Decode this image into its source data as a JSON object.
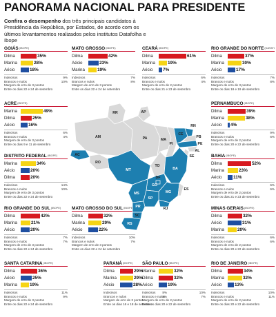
{
  "title": "PANORAMA NACIONAL PARA PRESIDENTE",
  "intro": {
    "bold": "Confira o desempenho",
    "text": " dos três principais candidatos à Presidência da República,  por Estados, de acordo com os últimos levantamentos realizados pelos institutos Datafolha e Ibope"
  },
  "colors": {
    "dilma": "#d7191f",
    "marina": "#f6d415",
    "aecio": "#1f4fa1",
    "map_highlight": "#1d7fb0",
    "map_base": "#d9d9d9"
  },
  "panels": [
    {
      "state": "GOIÁS",
      "institute": "(IBOPE)",
      "rows": [
        {
          "name": "Dilma",
          "value": 35
        },
        {
          "name": "Marina",
          "value": 28
        },
        {
          "name": "Aécio",
          "value": 18
        }
      ],
      "indecisos": "9%",
      "brancos": "10%",
      "margem": "Margem de erro de 3 pontos",
      "entre": "Entre os dias 22 e 24 de setembro"
    },
    {
      "state": "MATO GROSSO",
      "institute": "(IBOPE)",
      "rows": [
        {
          "name": "Dilma",
          "value": 42
        },
        {
          "name": "Aécio",
          "value": 23
        },
        {
          "name": "Marina",
          "value": 19
        }
      ],
      "indecisos": "7%",
      "brancos": "8%",
      "margem": "Margem de erro de 3 pontos",
      "entre": "Entre os dias 22 e 24 de setembro"
    },
    {
      "state": "CEARÁ",
      "institute": "(IBOPE)",
      "rows": [
        {
          "name": "Dilma",
          "value": 61
        },
        {
          "name": "Marina",
          "value": 19
        },
        {
          "name": "Aécio",
          "value": 7
        }
      ],
      "indecisos": "6%",
      "brancos": "4%",
      "margem": "Margem de erro de 2 pontos",
      "entre": "Entre os dias 21 e 23 de setembro"
    },
    {
      "state": "RIO GRANDE DO NORTE",
      "institute": "(DATAFOLHA)",
      "rows": [
        {
          "name": "Dilma",
          "value": 37
        },
        {
          "name": "Marina",
          "value": 30
        },
        {
          "name": "Aécio",
          "value": 17
        }
      ],
      "indecisos": "7%",
      "brancos": "8%",
      "margem": "Margem de erro de 3 pontos",
      "entre": "Entre os dias 18 e 19 de setembro"
    },
    {
      "state": "ACRE",
      "institute": "(IBOPE)",
      "rows": [
        {
          "name": "Marina",
          "value": 49
        },
        {
          "name": "Dilma",
          "value": 25
        },
        {
          "name": "Aécio",
          "value": 16
        }
      ],
      "indecisos": "6%",
      "brancos": "4%",
      "margem": "Margem de erro de 3 pontos",
      "entre": "Entre os dias 9 e 11 de setembro"
    },
    {
      "state": "PERNAMBUCO",
      "institute": "(IBOPE)",
      "rows": [
        {
          "name": "Dilma",
          "value": 39
        },
        {
          "name": "Marina",
          "value": 38
        },
        {
          "name": "Aécio",
          "value": 4
        }
      ],
      "indecisos": "9%",
      "brancos": "6%",
      "margem": "Margem de erro de 2 pontos",
      "entre": "Entre os dias 20 e 22 de setembro"
    },
    {
      "state": "DISTRITO FEDERAL",
      "institute": "(IBOPE)",
      "rows": [
        {
          "name": "Marina",
          "value": 34
        },
        {
          "name": "Aécio",
          "value": 20
        },
        {
          "name": "Dilma",
          "value": 20
        }
      ],
      "indecisos": "14%",
      "brancos": "10%",
      "margem": "Margem de erro de 3 pontos",
      "entre": "Entre os dias 22 e 24 de setembro"
    },
    {
      "state": "BAHIA",
      "institute": "(IBOPE)",
      "rows": [
        {
          "name": "Dilma",
          "value": 52
        },
        {
          "name": "Marina",
          "value": 23
        },
        {
          "name": "Aécio",
          "value": 11
        }
      ],
      "indecisos": "6%",
      "brancos": "6%",
      "margem": "Margem de erro de 2 pontos",
      "entre": "Entre os dias 21 e 23 de setembro"
    },
    {
      "state": "RIO GRANDE DO SUL",
      "institute": "(IBOPE)",
      "rows": [
        {
          "name": "Dilma",
          "value": 42
        },
        {
          "name": "Marina",
          "value": 21
        },
        {
          "name": "Aécio",
          "value": 20
        }
      ],
      "indecisos": "7%",
      "brancos": "7%",
      "margem": "Margem de erro de 3 pontos",
      "entre": "Entre os dias 22 e 24 de setembro"
    },
    {
      "state": "MATO GROSSO DO SUL",
      "institute": "(IBOPE)",
      "rows": [
        {
          "name": "Dilma",
          "value": 32
        },
        {
          "name": "Marina",
          "value": 29
        },
        {
          "name": "Aécio",
          "value": 22
        }
      ],
      "indecisos": "10%",
      "brancos": "7%",
      "margem": "Margem de erro de 3 pontos",
      "entre": "Entre os dias 22 e 24 de setembro"
    },
    {
      "state": "MINAS GERAIS",
      "institute": "(IBOPE)",
      "rows": [
        {
          "name": "Dilma",
          "value": 32
        },
        {
          "name": "Aécio",
          "value": 31
        },
        {
          "name": "Marina",
          "value": 20
        }
      ],
      "indecisos": "6%",
      "brancos": "6%",
      "margem": "Margem de erro de 2 pontos",
      "entre": "Entre os dias 20 e 22 de setembro"
    },
    {
      "state": "SANTA CATARINA",
      "institute": "(IBOPE)",
      "rows": [
        {
          "name": "Dilma",
          "value": 36
        },
        {
          "name": "Aécio",
          "value": 25
        },
        {
          "name": "Marina",
          "value": 19
        }
      ],
      "indecisos": "11%",
      "brancos": "9%",
      "margem": "Margem de erro de 3 pontos",
      "entre": "Entre os dias 22 e 24 de setembro"
    },
    {
      "state": "PARANÁ",
      "institute": "(IBOPE)",
      "rows": [
        {
          "name": "Dilma",
          "value": 29
        },
        {
          "name": "Marina",
          "value": 29
        },
        {
          "name": "Aécio",
          "value": 28
        }
      ],
      "indecisos": "8%",
      "brancos": "6%",
      "margem": "Margem de erro de 3 pontos",
      "entre": "Entre os dias 16 e 18 de setembro"
    },
    {
      "state": "SÃO PAULO",
      "institute": "(IBOPE)",
      "rows": [
        {
          "name": "Marina",
          "value": 32
        },
        {
          "name": "Dilma",
          "value": 32
        },
        {
          "name": "Aécio",
          "value": 19
        }
      ],
      "indecisos": "10%",
      "brancos": "7%",
      "margem": "Margem de erro de 2 pontos",
      "entre": "Entre os dias 20 e 22 de setembro"
    },
    {
      "state": "RIO DE JANEIRO",
      "institute": "(IBOPE)",
      "rows": [
        {
          "name": "Dilma",
          "value": 34
        },
        {
          "name": "Marina",
          "value": 32
        },
        {
          "name": "Aécio",
          "value": 13
        }
      ],
      "indecisos": "10%",
      "brancos": "11%",
      "margem": "Margem de erro de 2 pontos",
      "entre": "Entre os dias 20 e 22 de setembro"
    }
  ],
  "foot_labels": {
    "indecisos": "Indecisos",
    "brancos": "Brancos e nulos"
  },
  "map": {
    "highlighted": [
      "AC",
      "MT",
      "GO",
      "DF",
      "MS",
      "PR",
      "SP",
      "SC",
      "RS",
      "MG",
      "RJ",
      "BA",
      "PE",
      "RN",
      "CE"
    ],
    "labels": [
      "RR",
      "AP",
      "AM",
      "PA",
      "MA",
      "CE",
      "RN",
      "PB",
      "PE",
      "AC",
      "RO",
      "TO",
      "PI",
      "SE",
      "AL",
      "BA",
      "MT",
      "DF",
      "GO",
      "MG",
      "ES",
      "MS",
      "SP",
      "RJ",
      "PR",
      "SC",
      "RS"
    ]
  }
}
